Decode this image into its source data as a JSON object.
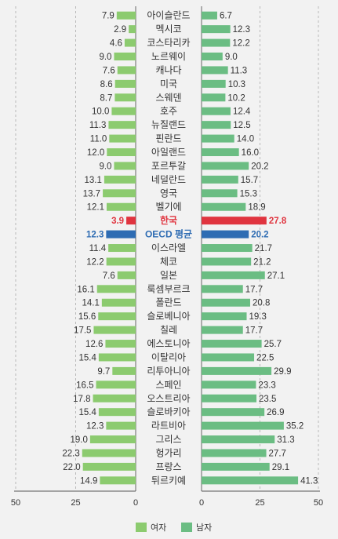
{
  "chart_data": {
    "type": "bar",
    "layout": "butterfly-horizontal",
    "categories": [
      "아이슬란드",
      "멕시코",
      "코스타리카",
      "노르웨이",
      "캐나다",
      "미국",
      "스웨덴",
      "호주",
      "뉴질랜드",
      "핀란드",
      "아일랜드",
      "포르투갈",
      "네덜란드",
      "영국",
      "벨기에",
      "한국",
      "OECD 평균",
      "이스라엘",
      "체코",
      "일본",
      "룩셈부르크",
      "폴란드",
      "슬로베니아",
      "칠레",
      "에스토니아",
      "이탈리아",
      "리투아니아",
      "스페인",
      "오스트리아",
      "슬로바키아",
      "라트비아",
      "그리스",
      "헝가리",
      "프랑스",
      "튀르키예"
    ],
    "series": [
      {
        "name": "여자",
        "values": [
          7.9,
          2.9,
          4.6,
          9.0,
          7.6,
          8.6,
          8.7,
          10.0,
          11.3,
          11.0,
          12.0,
          9.0,
          13.1,
          13.7,
          12.1,
          3.9,
          12.3,
          11.4,
          12.2,
          7.6,
          16.1,
          14.1,
          15.6,
          17.5,
          12.6,
          15.4,
          9.7,
          16.5,
          17.8,
          15.4,
          12.3,
          19.0,
          22.3,
          22.0,
          14.9
        ]
      },
      {
        "name": "남자",
        "values": [
          6.7,
          12.3,
          12.2,
          9.0,
          11.3,
          10.3,
          10.2,
          12.4,
          12.5,
          14.0,
          16.0,
          20.2,
          15.7,
          15.3,
          18.9,
          27.8,
          20.2,
          21.7,
          21.2,
          27.1,
          17.7,
          20.8,
          19.3,
          17.7,
          25.7,
          22.5,
          29.9,
          23.3,
          23.5,
          26.9,
          35.2,
          31.3,
          27.7,
          29.1,
          41.3
        ]
      }
    ],
    "value_labels": {
      "female": [
        "7.9",
        "2.9",
        "4.6",
        "9.0",
        "7.6",
        "8.6",
        "8.7",
        "10.0",
        "11.3",
        "11.0",
        "12.0",
        "9.0",
        "13.1",
        "13.7",
        "12.1",
        "3.9",
        "12.3",
        "11.4",
        "12.2",
        "7.6",
        "16.1",
        "14.1",
        "15.6",
        "17.5",
        "12.6",
        "15.4",
        "9.7",
        "16.5",
        "17.8",
        "15.4",
        "12.3",
        "19.0",
        "22.3",
        "22.0",
        "14.9"
      ],
      "male": [
        "6.7",
        "12.3",
        "12.2",
        "9.0",
        "11.3",
        "10.3",
        "10.2",
        "12.4",
        "12.5",
        "14.0",
        "16.0",
        "20.2",
        "15.7",
        "15.3",
        "18.9",
        "27.8",
        "20.2",
        "21.7",
        "21.2",
        "27.1",
        "17.7",
        "20.8",
        "19.3",
        "17.7",
        "25.7",
        "22.5",
        "29.9",
        "23.3",
        "23.5",
        "26.9",
        "35.2",
        "31.3",
        "27.7",
        "29.1",
        "41.3"
      ]
    },
    "highlight": {
      "한국": "#e0343f",
      "OECD 평균": "#2e6cb3"
    },
    "colors": {
      "female": "#8ccb6f",
      "male": "#6bbd83"
    },
    "female_axis": {
      "range": [
        0,
        50
      ],
      "reversed": true,
      "ticks": [
        "50",
        "25",
        "0"
      ],
      "tick_values": [
        50,
        25,
        0
      ]
    },
    "male_axis": {
      "range": [
        0,
        50
      ],
      "ticks": [
        "0",
        "25",
        "50"
      ],
      "tick_values": [
        0,
        25,
        50
      ]
    },
    "grid": true,
    "legend_position": "bottom-center",
    "legend": [
      "여자",
      "남자"
    ]
  }
}
